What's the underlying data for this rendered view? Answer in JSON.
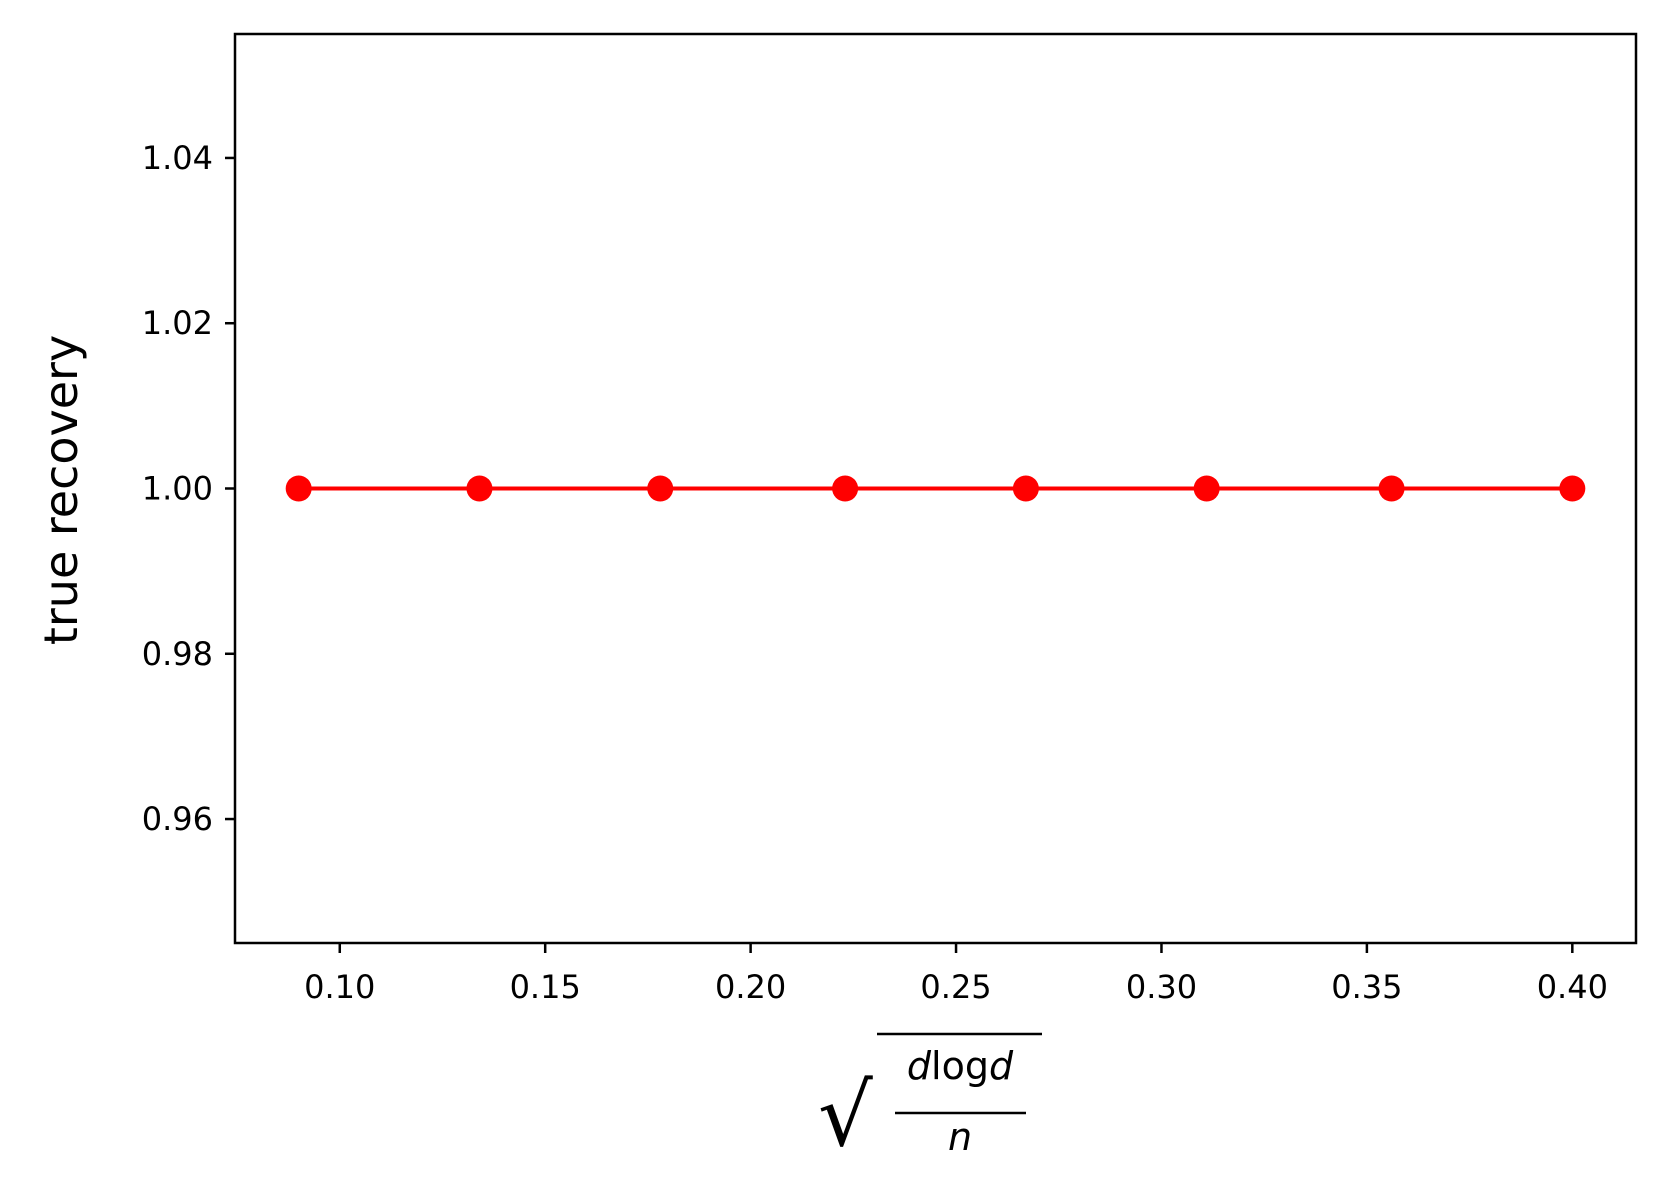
{
  "chart_data": {
    "type": "line",
    "title": "",
    "ylabel": "true recovery",
    "xlabel": {
      "sqrt_symbol": "√",
      "numerator_prefix": "d",
      "numerator_log": "log",
      "numerator_suffix": "d",
      "denominator": "n"
    },
    "x": [
      0.09,
      0.134,
      0.178,
      0.223,
      0.267,
      0.311,
      0.356,
      0.4
    ],
    "series": [
      {
        "name": "",
        "values": [
          1.0,
          1.0,
          1.0,
          1.0,
          1.0,
          1.0,
          1.0,
          1.0
        ],
        "color": "#ff0000",
        "marker": "circle"
      }
    ],
    "xlim": [
      0.0745,
      0.4155
    ],
    "ylim": [
      0.945,
      1.055
    ],
    "x_ticks": [
      0.1,
      0.15,
      0.2,
      0.25,
      0.3,
      0.35,
      0.4
    ],
    "x_tick_labels": [
      "0.10",
      "0.15",
      "0.20",
      "0.25",
      "0.30",
      "0.35",
      "0.40"
    ],
    "y_ticks": [
      0.96,
      0.98,
      1.0,
      1.02,
      1.04
    ],
    "y_tick_labels": [
      "0.96",
      "0.98",
      "1.00",
      "1.02",
      "1.04"
    ],
    "grid": false,
    "legend": "none"
  }
}
